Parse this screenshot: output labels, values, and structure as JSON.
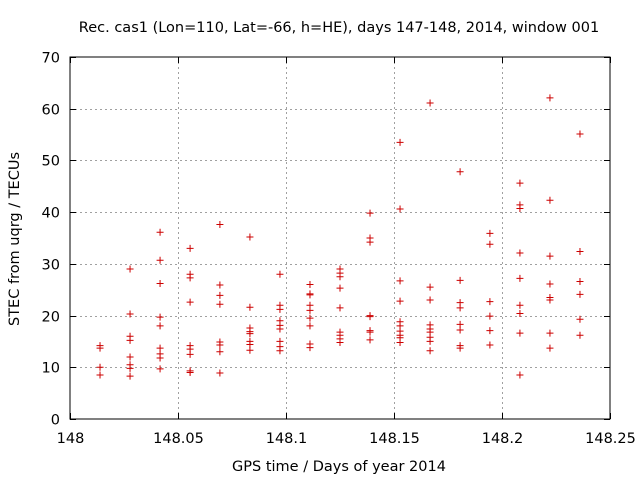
{
  "colors": {
    "points": "#cc0000",
    "grid": "#a0a0a0",
    "axes": "#000000"
  },
  "chart_data": {
    "type": "scatter",
    "title": "Rec. cas1 (Lon=110, Lat=-66, h=HE), days 147-148, 2014, window 001",
    "xlabel": "GPS time / Days of year 2014",
    "ylabel": "STEC from uqrg / TECUs",
    "xlim": [
      148,
      148.25
    ],
    "ylim": [
      0,
      70
    ],
    "xticks": [
      148,
      148.05,
      148.1,
      148.15,
      148.2,
      148.25
    ],
    "xtick_labels": [
      "148",
      "148.05",
      "148.1",
      "148.15",
      "148.2",
      "148.25"
    ],
    "yticks": [
      0,
      10,
      20,
      30,
      40,
      50,
      60,
      70
    ],
    "ytick_labels": [
      "0",
      "10",
      "20",
      "30",
      "40",
      "50",
      "60",
      "70"
    ],
    "grid": true,
    "marker": "+",
    "series": [
      {
        "name": "STEC",
        "points": [
          [
            148.0139,
            14.2
          ],
          [
            148.0139,
            13.7
          ],
          [
            148.0139,
            10.0
          ],
          [
            148.0139,
            8.5
          ],
          [
            148.0278,
            29.0
          ],
          [
            148.0278,
            20.3
          ],
          [
            148.0278,
            16.0
          ],
          [
            148.0278,
            15.2
          ],
          [
            148.0278,
            12.0
          ],
          [
            148.0278,
            10.5
          ],
          [
            148.0278,
            9.8
          ],
          [
            148.0278,
            8.3
          ],
          [
            148.0417,
            36.1
          ],
          [
            148.0417,
            30.7
          ],
          [
            148.0417,
            26.2
          ],
          [
            148.0417,
            19.7
          ],
          [
            148.0417,
            18.0
          ],
          [
            148.0417,
            13.7
          ],
          [
            148.0417,
            12.6
          ],
          [
            148.0417,
            11.8
          ],
          [
            148.0417,
            9.7
          ],
          [
            148.0556,
            33.0
          ],
          [
            148.0556,
            28.0
          ],
          [
            148.0556,
            27.3
          ],
          [
            148.0556,
            22.6
          ],
          [
            148.0556,
            14.2
          ],
          [
            148.0556,
            13.5
          ],
          [
            148.0556,
            12.5
          ],
          [
            148.0556,
            9.3
          ],
          [
            148.0556,
            9.0
          ],
          [
            148.0694,
            37.6
          ],
          [
            148.0694,
            25.9
          ],
          [
            148.0694,
            23.9
          ],
          [
            148.0694,
            22.2
          ],
          [
            148.0694,
            14.9
          ],
          [
            148.0694,
            14.3
          ],
          [
            148.0694,
            13.0
          ],
          [
            148.0694,
            8.9
          ],
          [
            148.0833,
            35.2
          ],
          [
            148.0833,
            21.6
          ],
          [
            148.0833,
            17.6
          ],
          [
            148.0833,
            16.9
          ],
          [
            148.0833,
            16.5
          ],
          [
            148.0833,
            15.0
          ],
          [
            148.0833,
            14.4
          ],
          [
            148.0833,
            13.3
          ],
          [
            148.0972,
            28.0
          ],
          [
            148.0972,
            22.0
          ],
          [
            148.0972,
            21.2
          ],
          [
            148.0972,
            19.0
          ],
          [
            148.0972,
            18.1
          ],
          [
            148.0972,
            17.4
          ],
          [
            148.0972,
            15.0
          ],
          [
            148.0972,
            14.0
          ],
          [
            148.0972,
            13.2
          ],
          [
            148.1111,
            26.0
          ],
          [
            148.1111,
            24.2
          ],
          [
            148.1111,
            24.0
          ],
          [
            148.1111,
            22.0
          ],
          [
            148.1111,
            21.0
          ],
          [
            148.1111,
            19.5
          ],
          [
            148.1111,
            18.0
          ],
          [
            148.1111,
            14.5
          ],
          [
            148.1111,
            13.8
          ],
          [
            148.125,
            29.0
          ],
          [
            148.125,
            28.2
          ],
          [
            148.125,
            27.5
          ],
          [
            148.125,
            25.3
          ],
          [
            148.125,
            21.5
          ],
          [
            148.125,
            16.8
          ],
          [
            148.125,
            16.2
          ],
          [
            148.125,
            15.5
          ],
          [
            148.125,
            14.8
          ],
          [
            148.1389,
            39.8
          ],
          [
            148.1389,
            35.0
          ],
          [
            148.1389,
            34.2
          ],
          [
            148.1389,
            20.0
          ],
          [
            148.1389,
            19.8
          ],
          [
            148.1389,
            17.1
          ],
          [
            148.1389,
            16.8
          ],
          [
            148.1389,
            15.3
          ],
          [
            148.1528,
            53.5
          ],
          [
            148.1528,
            40.6
          ],
          [
            148.1528,
            26.7
          ],
          [
            148.1528,
            22.8
          ],
          [
            148.1528,
            18.8
          ],
          [
            148.1528,
            18.0
          ],
          [
            148.1528,
            17.0
          ],
          [
            148.1528,
            16.2
          ],
          [
            148.1528,
            15.7
          ],
          [
            148.1528,
            14.8
          ],
          [
            148.1667,
            61.1
          ],
          [
            148.1667,
            25.5
          ],
          [
            148.1667,
            23.0
          ],
          [
            148.1667,
            18.2
          ],
          [
            148.1667,
            17.4
          ],
          [
            148.1667,
            16.8
          ],
          [
            148.1667,
            15.8
          ],
          [
            148.1667,
            15.0
          ],
          [
            148.1667,
            13.2
          ],
          [
            148.1806,
            47.8
          ],
          [
            148.1806,
            26.8
          ],
          [
            148.1806,
            22.5
          ],
          [
            148.1806,
            21.5
          ],
          [
            148.1806,
            18.3
          ],
          [
            148.1806,
            17.2
          ],
          [
            148.1806,
            14.2
          ],
          [
            148.1806,
            13.7
          ],
          [
            148.1944,
            35.9
          ],
          [
            148.1944,
            33.8
          ],
          [
            148.1944,
            22.7
          ],
          [
            148.1944,
            19.9
          ],
          [
            148.1944,
            17.1
          ],
          [
            148.1944,
            14.3
          ],
          [
            148.2083,
            45.6
          ],
          [
            148.2083,
            41.4
          ],
          [
            148.2083,
            40.7
          ],
          [
            148.2083,
            32.1
          ],
          [
            148.2083,
            27.2
          ],
          [
            148.2083,
            22.0
          ],
          [
            148.2083,
            20.4
          ],
          [
            148.2083,
            16.6
          ],
          [
            148.2083,
            8.5
          ],
          [
            148.2222,
            62.1
          ],
          [
            148.2222,
            42.3
          ],
          [
            148.2222,
            31.5
          ],
          [
            148.2222,
            26.1
          ],
          [
            148.2222,
            23.5
          ],
          [
            148.2222,
            23.0
          ],
          [
            148.2222,
            16.6
          ],
          [
            148.2222,
            13.7
          ],
          [
            148.2361,
            55.1
          ],
          [
            148.2361,
            32.4
          ],
          [
            148.2361,
            26.6
          ],
          [
            148.2361,
            24.1
          ],
          [
            148.2361,
            19.3
          ],
          [
            148.2361,
            16.2
          ]
        ]
      }
    ]
  }
}
